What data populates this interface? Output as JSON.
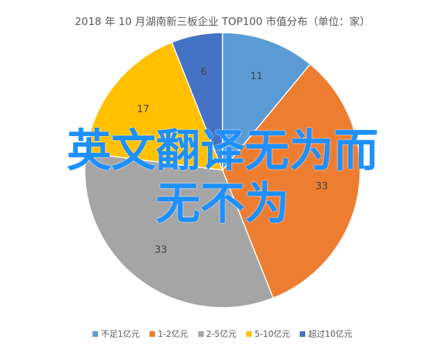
{
  "chart_data": {
    "type": "pie",
    "title": "2018 年 10 月湖南新三板企业 TOP100 市值分布（单位：家）",
    "categories": [
      "不足1亿元",
      "1-2亿元",
      "2-5亿元",
      "5-10亿元",
      "超过10亿元"
    ],
    "values": [
      11,
      33,
      33,
      17,
      6
    ],
    "colors": [
      "#5b9bd5",
      "#ed7d31",
      "#a5a5a5",
      "#ffc000",
      "#4472c4"
    ],
    "legend_position": "bottom",
    "start": "top",
    "direction": "clockwise"
  },
  "watermark": {
    "line1": "英文翻译无为而",
    "line2": "无不为"
  }
}
